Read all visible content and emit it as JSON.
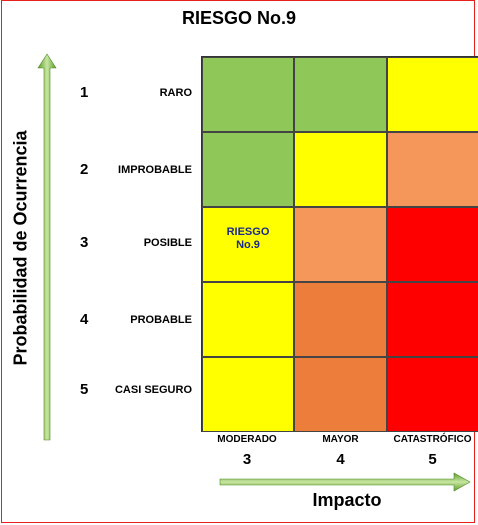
{
  "title": "RIESGO No.9",
  "y_axis_label": "Probabilidad de Ocurrencia",
  "x_axis_label": "Impacto",
  "rows": [
    {
      "num": "1",
      "label": "RARO"
    },
    {
      "num": "2",
      "label": "IMPROBABLE"
    },
    {
      "num": "3",
      "label": "POSIBLE"
    },
    {
      "num": "4",
      "label": "PROBABLE"
    },
    {
      "num": "5",
      "label": "CASI SEGURO"
    }
  ],
  "columns": [
    {
      "label": "MODERADO",
      "num": "3"
    },
    {
      "label": "MAYOR",
      "num": "4"
    },
    {
      "label": "CATASTRÓFICO",
      "num": "5"
    }
  ],
  "matrix_colors": [
    [
      "#8fc759",
      "#8fc759",
      "#ffff00"
    ],
    [
      "#8fc759",
      "#ffff00",
      "#f5975a"
    ],
    [
      "#ffff00",
      "#f5975a",
      "#ff0000"
    ],
    [
      "#ffff00",
      "#ec7d3a",
      "#ff0000"
    ],
    [
      "#ffff00",
      "#ec7d3a",
      "#ff0000"
    ]
  ],
  "marker": {
    "row": 3,
    "column": 1,
    "line1": "RIESGO",
    "line2": "No.9"
  },
  "arrow_color": "#8fc759"
}
